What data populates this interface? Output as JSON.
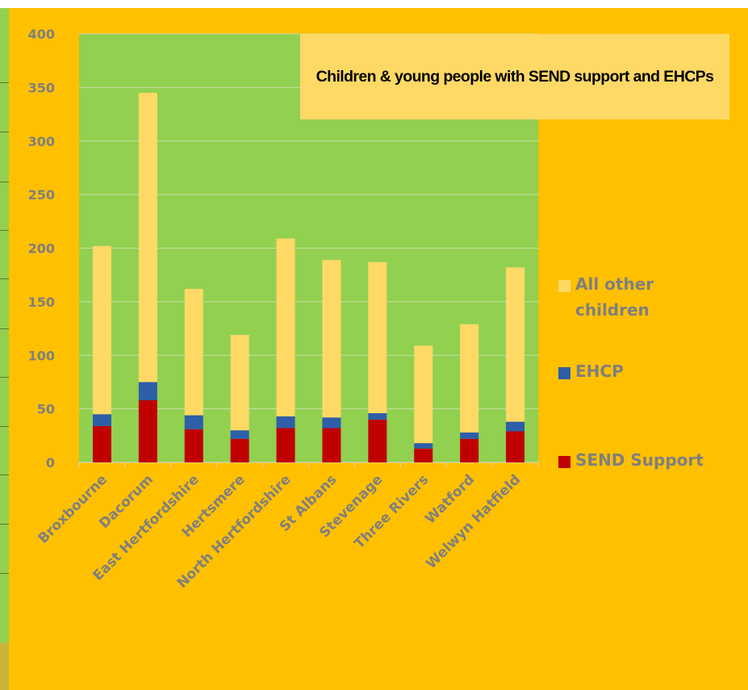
{
  "chart_data": {
    "type": "bar",
    "stacked": true,
    "title": "Children & young people with SEND support and EHCPs",
    "categories": [
      "Broxbourne",
      "Dacorum",
      "East Hertfordshire",
      "Hertsmere",
      "North Hertfordshire",
      "St Albans",
      "Stevenage",
      "Three Rivers",
      "Watford",
      "Welwyn Hatfield"
    ],
    "series": [
      {
        "name": "SEND Support",
        "color": "#c00000",
        "values": [
          34,
          58,
          31,
          22,
          32,
          32,
          40,
          13,
          22,
          29
        ]
      },
      {
        "name": "EHCP",
        "color": "#2e5ea8",
        "values": [
          11,
          17,
          13,
          8,
          11,
          10,
          6,
          5,
          6,
          9
        ]
      },
      {
        "name": "All other children",
        "color": "#ffd966",
        "values": [
          157,
          270,
          118,
          89,
          166,
          147,
          141,
          91,
          101,
          144
        ]
      }
    ],
    "ylim": [
      0,
      400
    ],
    "yticks": [
      "0",
      "50",
      "100",
      "150",
      "200",
      "250",
      "300",
      "350",
      "400"
    ],
    "grid": true,
    "legend_position": "right",
    "colors": {
      "plot_background": "#92d050",
      "chart_background": "#ffc000",
      "title_box": "#ffd966",
      "text": "#7f7f7f",
      "gridline": "#c6e0a4"
    }
  }
}
